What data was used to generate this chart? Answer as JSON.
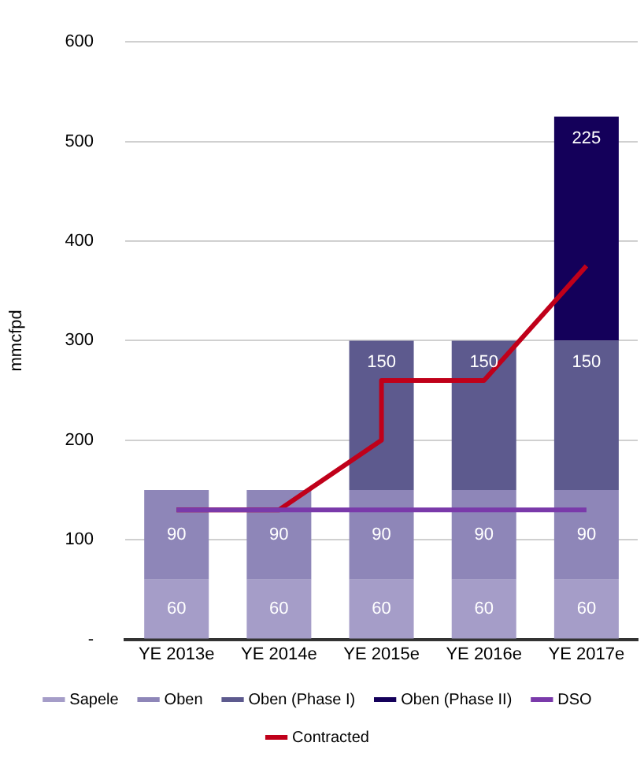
{
  "chart_data": {
    "type": "bar",
    "stacked": true,
    "ylabel": "mmcfpd",
    "categories": [
      "YE 2013e",
      "YE 2014e",
      "YE 2015e",
      "YE 2016e",
      "YE 2017e"
    ],
    "series": [
      {
        "name": "Sapele",
        "color": "#a59dc8",
        "values": [
          60,
          60,
          60,
          60,
          60
        ],
        "value_labels": [
          "60",
          "60",
          "60",
          "60",
          "60"
        ]
      },
      {
        "name": "Oben",
        "color": "#8e86b8",
        "values": [
          90,
          90,
          90,
          90,
          90
        ],
        "value_labels": [
          "90",
          "90",
          "90",
          "90",
          "90"
        ]
      },
      {
        "name": "Oben (Phase I)",
        "color": "#5d5a8e",
        "values": [
          null,
          null,
          150,
          150,
          150
        ],
        "value_labels": [
          null,
          null,
          "150",
          "150",
          "150"
        ]
      },
      {
        "name": "Oben (Phase II)",
        "color": "#14005a",
        "values": [
          null,
          null,
          null,
          null,
          225
        ],
        "value_labels": [
          null,
          null,
          null,
          null,
          "225"
        ]
      },
      {
        "name": "DSO",
        "type": "line",
        "color": "#7a3aaa",
        "values": [
          130,
          130,
          130,
          130,
          130
        ]
      },
      {
        "name": "Contracted",
        "type": "line",
        "color": "#c0001a",
        "x": [
          "YE 2013e",
          "YE 2014e",
          "YE 2015e",
          "YE 2015e",
          "YE 2016e",
          "YE 2017e"
        ],
        "values": [
          130,
          130,
          200,
          260,
          260,
          375
        ]
      }
    ],
    "ylim": [
      0,
      600
    ],
    "yticks": [
      {
        "value": 0,
        "label": "-"
      },
      100,
      200,
      300,
      400,
      500,
      600
    ],
    "grid": "y",
    "legend": "bottom",
    "marker": "none"
  }
}
